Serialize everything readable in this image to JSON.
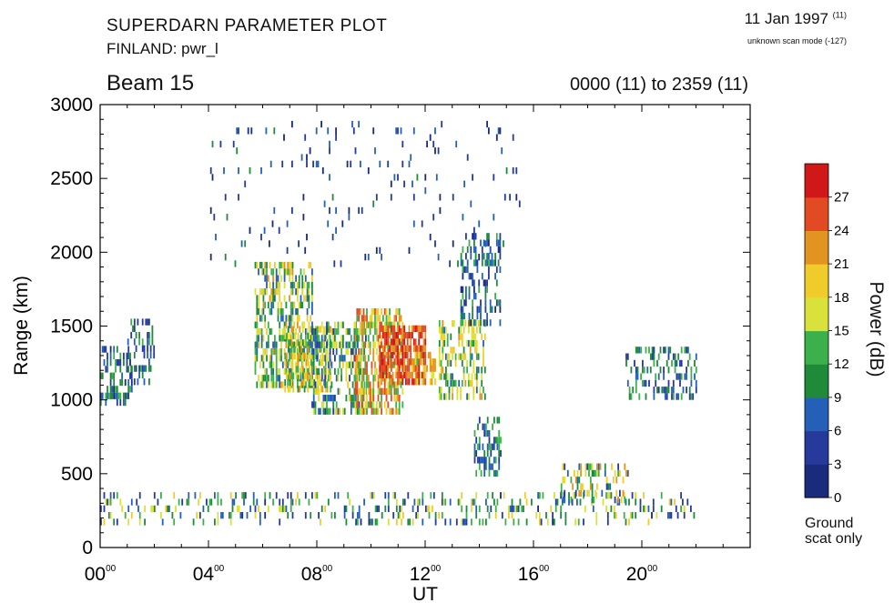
{
  "header": {
    "title_line1": "SUPERDARN PARAMETER PLOT",
    "title_line2": "FINLAND: pwr_l",
    "date": "11 Jan 1997",
    "date_sup": "(11)",
    "scan_mode": "unknown scan mode (-127)",
    "beam": "Beam 15",
    "time_range": "0000 (11) to 2359 (11)"
  },
  "chart_data": {
    "type": "heatmap",
    "xlabel": "UT",
    "ylabel": "Range (km)",
    "x_range_hours": [
      0,
      24
    ],
    "ylim": [
      0,
      3000
    ],
    "x_ticks": [
      {
        "value": 0,
        "hh": "00",
        "mm": "00"
      },
      {
        "value": 4,
        "hh": "04",
        "mm": "00"
      },
      {
        "value": 8,
        "hh": "08",
        "mm": "00"
      },
      {
        "value": 12,
        "hh": "12",
        "mm": "00"
      },
      {
        "value": 16,
        "hh": "16",
        "mm": "00"
      },
      {
        "value": 20,
        "hh": "20",
        "mm": "00"
      }
    ],
    "y_ticks": [
      0,
      500,
      1000,
      1500,
      2000,
      2500,
      3000
    ],
    "colorbar": {
      "title": "Power (dB)",
      "range": [
        0,
        30
      ],
      "tick_labels": [
        0,
        3,
        6,
        9,
        12,
        15,
        18,
        21,
        24,
        27
      ],
      "colors": [
        "#1a2a7c",
        "#253a9a",
        "#2560b8",
        "#1f8a3a",
        "#3cb04a",
        "#d8e23a",
        "#f0cc2a",
        "#e29420",
        "#e24a24",
        "#d01818"
      ],
      "ground_scatter_label": "Ground\nscat only"
    },
    "regions": [
      {
        "t0": 0.0,
        "t1": 1.2,
        "r0": 960,
        "r1": 1350,
        "p0": 2,
        "p1": 14,
        "density": 0.45
      },
      {
        "t0": 1.0,
        "t1": 2.0,
        "r0": 1100,
        "r1": 1520,
        "p0": 3,
        "p1": 13,
        "density": 0.4
      },
      {
        "t0": 5.7,
        "t1": 7.8,
        "r0": 1080,
        "r1": 1900,
        "p0": 6,
        "p1": 22,
        "density": 0.55
      },
      {
        "t0": 6.8,
        "t1": 8.5,
        "r0": 1050,
        "r1": 1500,
        "p0": 10,
        "p1": 24,
        "density": 0.6
      },
      {
        "t0": 7.8,
        "t1": 9.8,
        "r0": 900,
        "r1": 1500,
        "p0": 4,
        "p1": 20,
        "density": 0.5
      },
      {
        "t0": 9.4,
        "t1": 11.2,
        "r0": 900,
        "r1": 1600,
        "p0": 12,
        "p1": 27,
        "density": 0.6
      },
      {
        "t0": 10.3,
        "t1": 12.0,
        "r0": 1100,
        "r1": 1500,
        "p0": 21,
        "p1": 30,
        "density": 0.7
      },
      {
        "t0": 11.5,
        "t1": 12.4,
        "r0": 1100,
        "r1": 1300,
        "p0": 14,
        "p1": 24,
        "density": 0.5
      },
      {
        "t0": 12.5,
        "t1": 14.2,
        "r0": 1000,
        "r1": 1500,
        "p0": 8,
        "p1": 22,
        "density": 0.45
      },
      {
        "t0": 13.3,
        "t1": 14.8,
        "r0": 1500,
        "r1": 2100,
        "p0": 2,
        "p1": 14,
        "density": 0.4
      },
      {
        "t0": 13.8,
        "t1": 14.8,
        "r0": 480,
        "r1": 850,
        "p0": 3,
        "p1": 15,
        "density": 0.45
      },
      {
        "t0": 19.4,
        "t1": 22.0,
        "r0": 1000,
        "r1": 1350,
        "p0": 3,
        "p1": 14,
        "density": 0.35
      },
      {
        "t0": 0.0,
        "t1": 22.0,
        "r0": 150,
        "r1": 360,
        "p0": 2,
        "p1": 20,
        "density": 0.2
      },
      {
        "t0": 17.0,
        "t1": 19.5,
        "r0": 300,
        "r1": 560,
        "p0": 4,
        "p1": 24,
        "density": 0.25
      },
      {
        "t0": 4.0,
        "t1": 15.5,
        "r0": 1900,
        "r1": 2850,
        "p0": 1,
        "p1": 10,
        "density": 0.04
      }
    ]
  }
}
